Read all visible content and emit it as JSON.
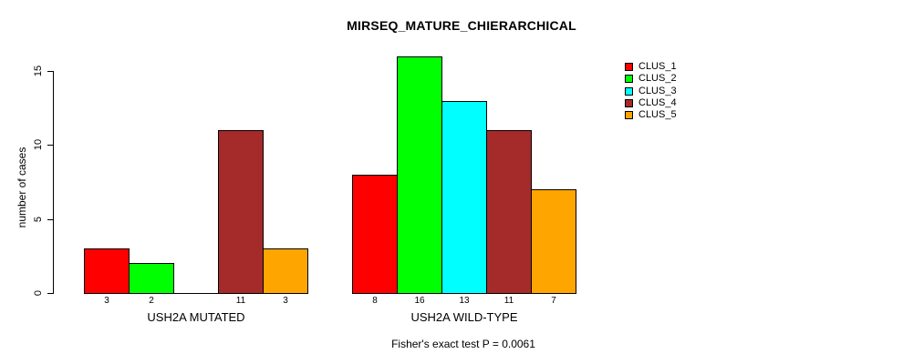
{
  "figure": {
    "title": "MIRSEQ_MATURE_CHIERARCHICAL",
    "ylabel": "number of cases",
    "footnote": "Fisher's exact test P = 0.0061"
  },
  "chart_data": {
    "type": "bar",
    "title": "MIRSEQ_MATURE_CHIERARCHICAL",
    "xlabel": "",
    "ylabel": "number of cases",
    "ylim": [
      0,
      16
    ],
    "yticks": [
      0,
      5,
      10,
      15
    ],
    "grid": false,
    "legend_position": "top-right",
    "legend": [
      {
        "name": "CLUS_1",
        "color": "#FF0000"
      },
      {
        "name": "CLUS_2",
        "color": "#00FF00"
      },
      {
        "name": "CLUS_3",
        "color": "#00FFFF"
      },
      {
        "name": "CLUS_4",
        "color": "#A52A2A"
      },
      {
        "name": "CLUS_5",
        "color": "#FFA500"
      }
    ],
    "categories": [
      "USH2A MUTATED",
      "USH2A WILD-TYPE"
    ],
    "series": [
      {
        "name": "CLUS_1",
        "values": [
          3,
          8
        ]
      },
      {
        "name": "CLUS_2",
        "values": [
          2,
          16
        ]
      },
      {
        "name": "CLUS_3",
        "values": [
          0,
          13
        ]
      },
      {
        "name": "CLUS_4",
        "values": [
          11,
          11
        ]
      },
      {
        "name": "CLUS_5",
        "values": [
          3,
          7
        ]
      }
    ],
    "bar_labels": [
      [
        "3",
        "2",
        "",
        "11",
        "3"
      ],
      [
        "8",
        "16",
        "13",
        "11",
        "7"
      ]
    ],
    "annotation": "Fisher's exact test P = 0.0061"
  }
}
